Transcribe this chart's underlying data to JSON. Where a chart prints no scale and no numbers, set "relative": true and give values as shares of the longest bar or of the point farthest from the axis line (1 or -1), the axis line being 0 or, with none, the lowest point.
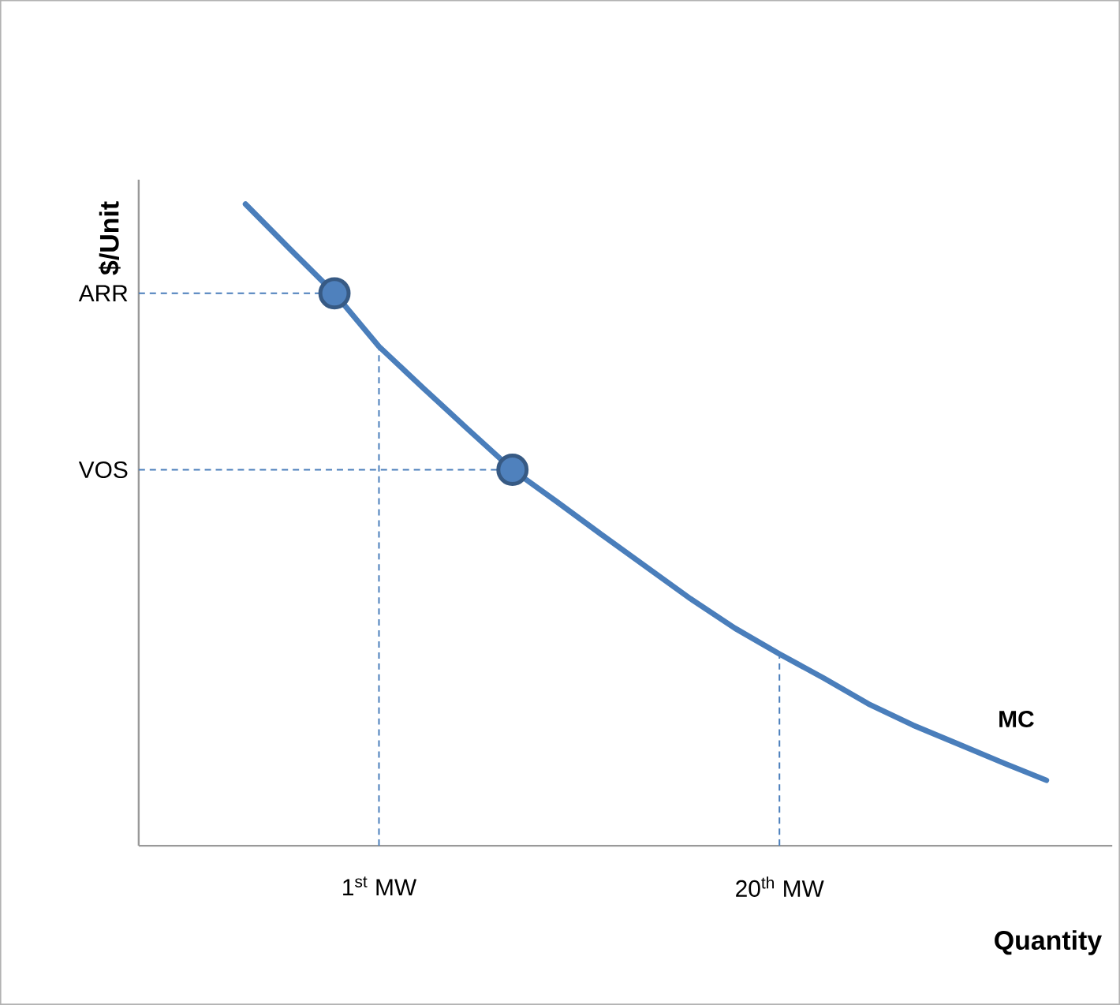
{
  "chart_data": {
    "type": "line",
    "xlabel": "Quantity",
    "ylabel": "$/Unit",
    "relative": true,
    "categories": [
      null,
      null,
      null,
      "1$^{st}$ MW",
      null,
      null,
      null,
      null,
      null,
      null,
      null,
      null,
      "20$^{th}$ MW",
      null,
      null,
      null,
      null,
      null,
      null
    ],
    "series": [
      {
        "name": "MC",
        "color": "#4a7ebb",
        "values": [
          1,
          0.93,
          0.861,
          0.778,
          0.713,
          0.649,
          0.586,
          0.536,
          0.485,
          0.435,
          0.385,
          0.339,
          0.299,
          0.261,
          0.221,
          0.188,
          0.159,
          0.13,
          0.102
        ]
      },
      {
        "type": "scatter",
        "marker": "circle",
        "color": "#4f81bd",
        "values": [
          null,
          null,
          0.861,
          null,
          null,
          null,
          0.586,
          null,
          null,
          null,
          null,
          null,
          null,
          null,
          null,
          null,
          null,
          null,
          null
        ]
      }
    ],
    "ref_lines": [
      {
        "axis": "y",
        "value": 0.861,
        "label": "ARR",
        "color": "#4a7ebb",
        "line_style": "dashed"
      },
      {
        "axis": "y",
        "value": 0.586,
        "label": "VOS",
        "color": "#4a7ebb",
        "line_style": "dashed"
      },
      {
        "axis": "x",
        "value": "1$^{st}$ MW",
        "color": "#4a7ebb",
        "line_style": "dashed"
      },
      {
        "axis": "x",
        "value": "20$^{th}$ MW",
        "color": "#4a7ebb",
        "line_style": "dashed"
      }
    ]
  }
}
